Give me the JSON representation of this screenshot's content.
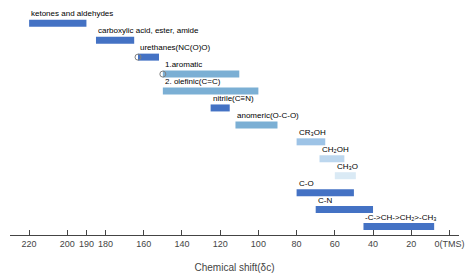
{
  "chart_data": {
    "type": "bar",
    "orientation": "horizontal",
    "categories": [
      "ketones and aldehydes",
      "carboxylic acid, ester, amide",
      "urethanes(NC(O)O)",
      "1.aromatic",
      "2. olefinic(C=C)",
      "nitrile(C≡N)",
      "anomeric(O-C-O)",
      "CR₃OH",
      "CH₂OH",
      "CH₃O",
      "C-O",
      "C-N",
      "-C->CH->CH₂>-CH₃"
    ],
    "values": [
      [
        190,
        220
      ],
      [
        165,
        185
      ],
      [
        152,
        163
      ],
      [
        110,
        150
      ],
      [
        100,
        150
      ],
      [
        115,
        125
      ],
      [
        90,
        112
      ],
      [
        65,
        80
      ],
      [
        55,
        68
      ],
      [
        49,
        60
      ],
      [
        50,
        80
      ],
      [
        40,
        70
      ],
      [
        8,
        45
      ]
    ],
    "colors": [
      "#4472C4",
      "#4472C4",
      "#4472C4",
      "#7BAFD4",
      "#7BAFD4",
      "#4472C4",
      "#7BAFD4",
      "#9DC3E6",
      "#BDD7EE",
      "#DAEAF5",
      "#4472C4",
      "#4472C4",
      "#4472C4"
    ],
    "points": {
      "x": [
        163,
        150
      ],
      "categories": [
        "urethanes(NC(O)O)",
        "1.aromatic"
      ]
    },
    "marker": "circle-open",
    "xlabel": "Chemical shift(δᴄ)",
    "xlim": [
      230,
      -5
    ],
    "xticks": [
      220,
      200,
      190,
      180,
      160,
      140,
      120,
      100,
      80,
      60,
      40,
      20,
      {
        "value": 0,
        "label": "0(TMS)"
      }
    ],
    "grid": false,
    "tick_labels": "x"
  }
}
